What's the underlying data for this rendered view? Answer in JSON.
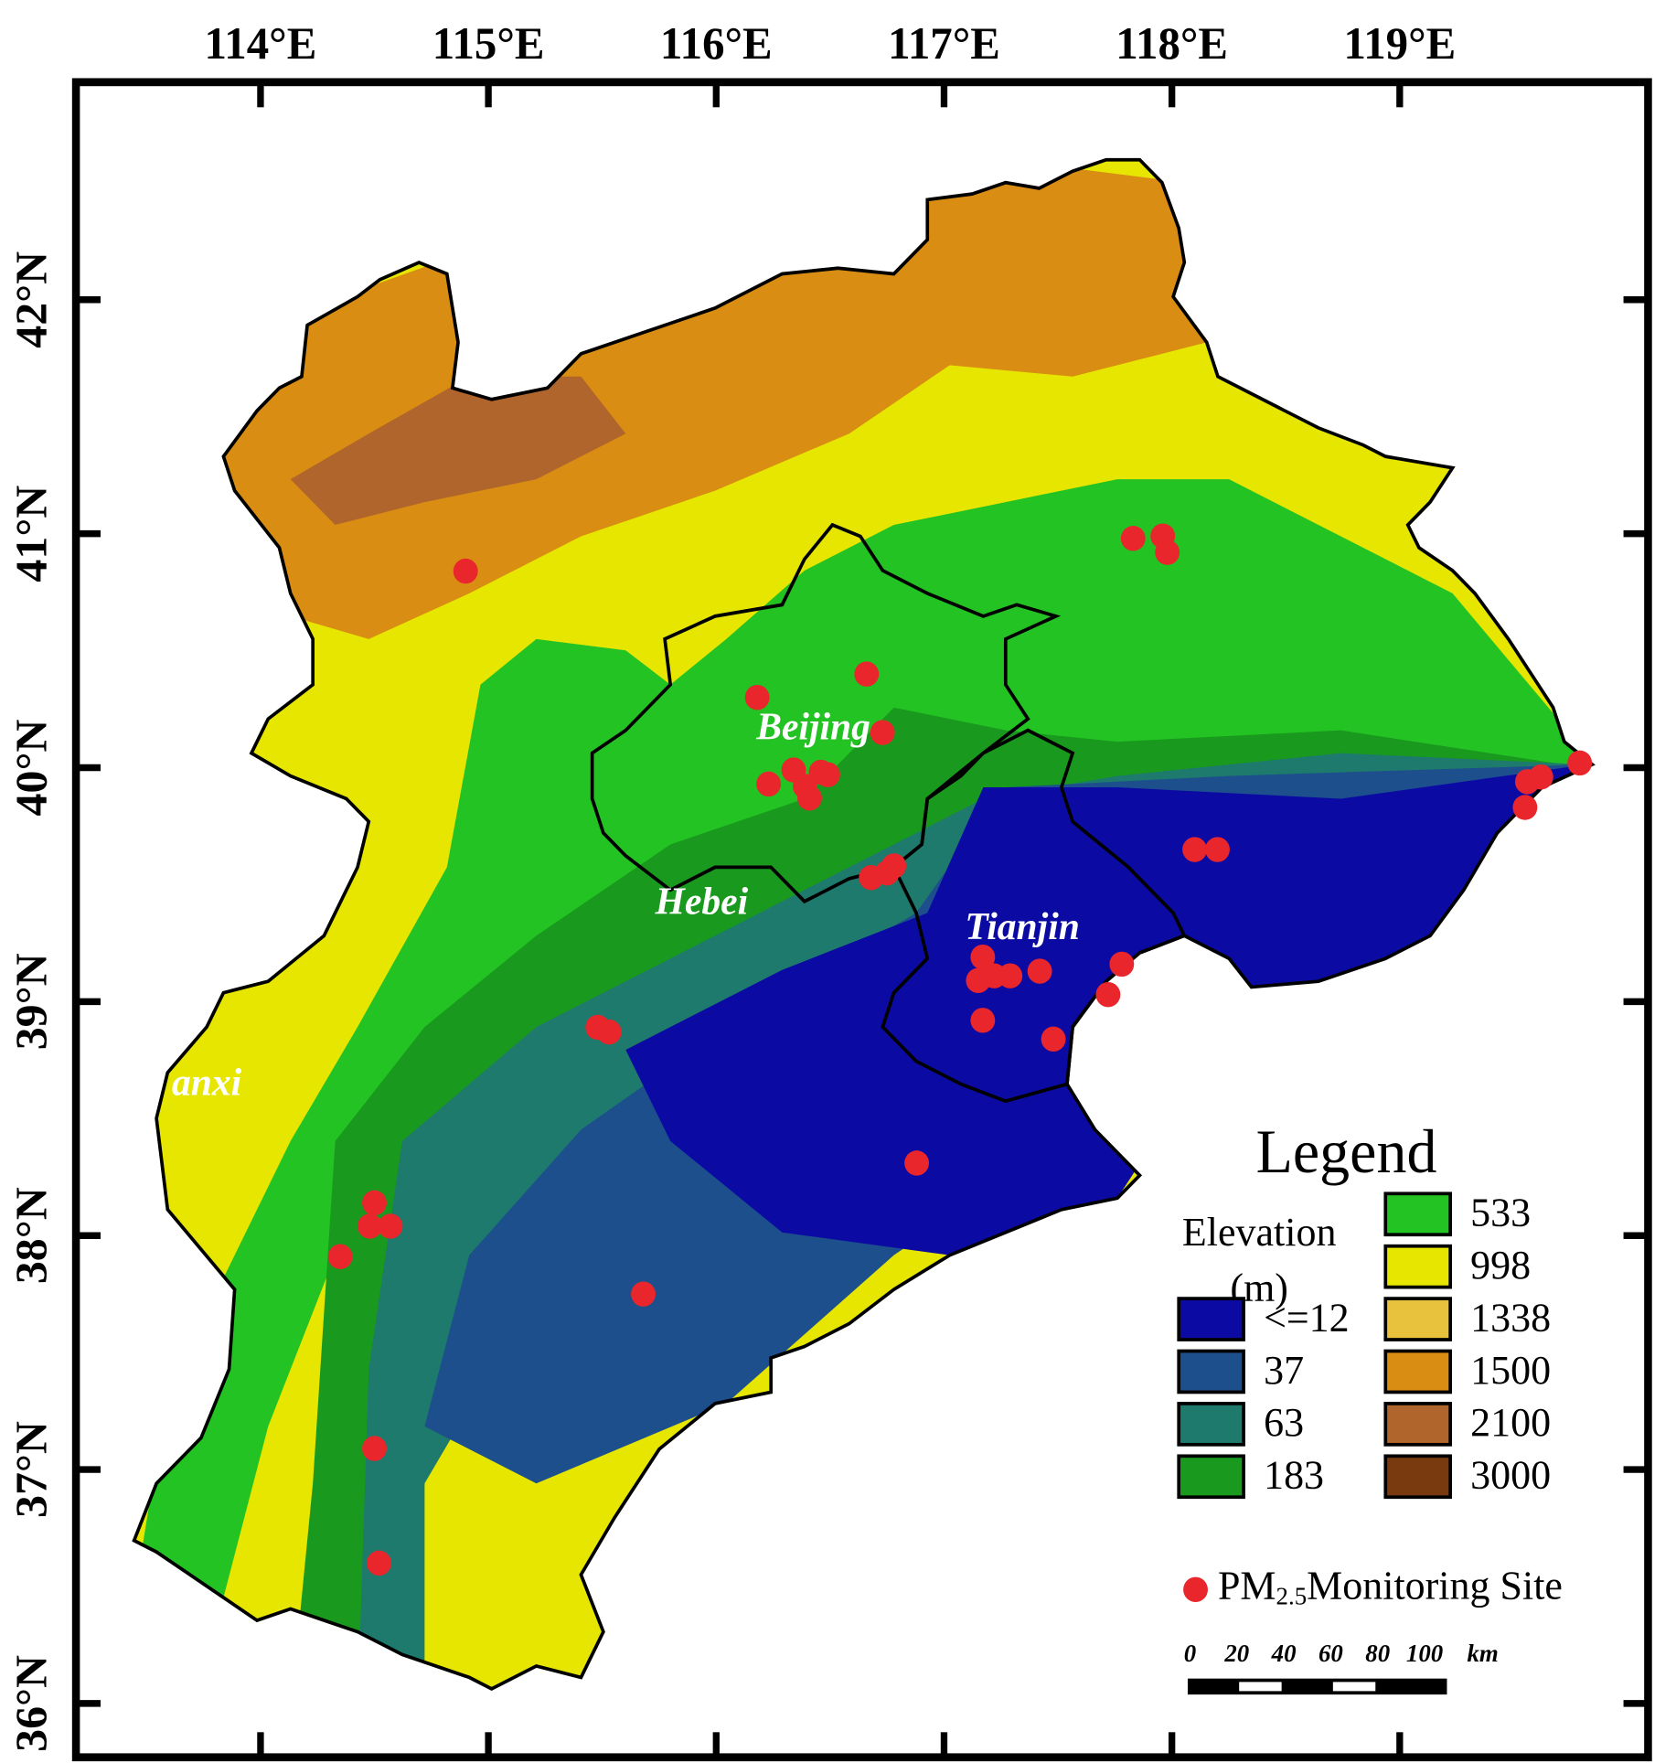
{
  "chart_data": {
    "type": "map",
    "xlim": [
      113.19,
      120.09
    ],
    "ylim": [
      35.77,
      42.93
    ],
    "xticks": [
      {
        "value": 114,
        "label": "114°E"
      },
      {
        "value": 115,
        "label": "115°E"
      },
      {
        "value": 116,
        "label": "116°E"
      },
      {
        "value": 117,
        "label": "117°E"
      },
      {
        "value": 118,
        "label": "118°E"
      },
      {
        "value": 119,
        "label": "119°E"
      }
    ],
    "yticks": [
      {
        "value": 36,
        "label": "36°N"
      },
      {
        "value": 37,
        "label": "37°N"
      },
      {
        "value": 38,
        "label": "38°N"
      },
      {
        "value": 39,
        "label": "39°N"
      },
      {
        "value": 40,
        "label": "40°N"
      },
      {
        "value": 41,
        "label": "41°N"
      },
      {
        "value": 42,
        "label": "42°N"
      }
    ],
    "places": [
      "Beijing",
      "Hebei",
      "Tianjin",
      "anxi"
    ],
    "legend": {
      "title": "Legend",
      "elevation_title": [
        "Elevation",
        "(m)"
      ],
      "items": [
        {
          "label": "<=12",
          "color": "#0b0ba3"
        },
        {
          "label": "37",
          "color": "#1c4f8c"
        },
        {
          "label": "63",
          "color": "#1d7a6c"
        },
        {
          "label": "183",
          "color": "#199a1e"
        },
        {
          "label": "533",
          "color": "#23c323"
        },
        {
          "label": "998",
          "color": "#e6e600"
        },
        {
          "label": "1338",
          "color": "#e8c23c"
        },
        {
          "label": "1500",
          "color": "#d98d12"
        },
        {
          "label": "2100",
          "color": "#b0652c"
        },
        {
          "label": "3000",
          "color": "#7a3a10"
        }
      ]
    },
    "sites": {
      "name": [
        "PM",
        "2.5",
        "Monitoring Site"
      ],
      "color": "#e8262c",
      "lon": [
        114.9,
        117.83,
        117.96,
        117.98,
        116.66,
        116.18,
        116.73,
        116.23,
        116.34,
        116.39,
        116.46,
        116.41,
        116.49,
        118.2,
        118.1,
        116.75,
        116.68,
        116.78,
        117.17,
        117.15,
        117.22,
        117.29,
        117.42,
        117.17,
        117.78,
        117.72,
        117.48,
        115.48,
        115.53,
        116.88,
        114.5,
        114.48,
        114.57,
        114.35,
        115.68,
        114.5,
        114.52,
        119.55,
        119.62,
        119.79,
        119.56
      ],
      "lat": [
        40.84,
        40.98,
        40.99,
        40.92,
        40.4,
        40.3,
        40.15,
        39.93,
        39.99,
        39.92,
        39.98,
        39.87,
        39.97,
        39.65,
        39.65,
        39.55,
        39.53,
        39.58,
        39.19,
        39.09,
        39.11,
        39.11,
        39.13,
        38.92,
        39.16,
        39.03,
        38.84,
        38.89,
        38.87,
        38.31,
        38.14,
        38.04,
        38.04,
        37.91,
        37.75,
        37.09,
        36.6,
        39.83,
        39.96,
        40.02,
        39.94
      ]
    },
    "scale_bar": {
      "ticks": [
        0,
        20,
        40,
        60,
        80,
        100
      ],
      "unit": "km"
    }
  }
}
